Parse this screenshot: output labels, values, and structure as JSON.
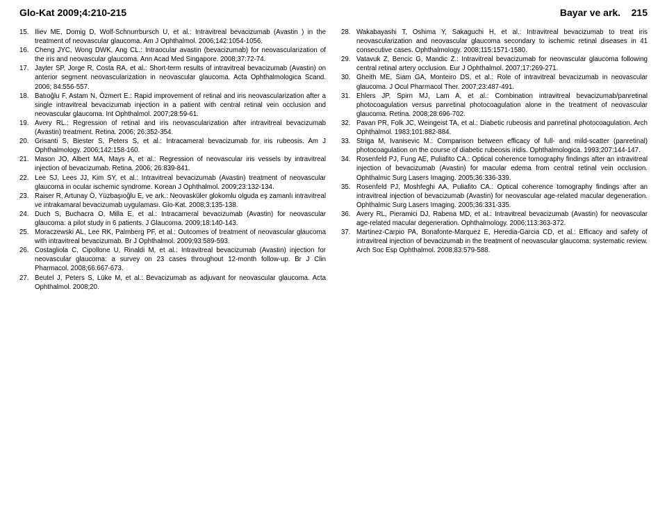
{
  "header": {
    "left": "Glo-Kat 2009;4:210-215",
    "right_author": "Bayar ve ark.",
    "right_page": "215"
  },
  "references_left": [
    {
      "n": "15.",
      "t": "Iliev ME, Domig D, Wolf-Schnurrbursch U, et al.: Intravitreal bevacizumab (Avastin ) in the treatment of neovascular glaucoma. Am J Ophthalmol. 2006;142:1054-1056."
    },
    {
      "n": "16.",
      "t": "Cheng JYC, Wong DWK, Ang CL.: Intraocular avastin (bevacizumab) for neovascularization of the iris and neovascular glaucoma. Ann Acad Med Singapore. 2008;37:72-74."
    },
    {
      "n": "17.",
      "t": "Jayter SP, Jorge R, Costa RA, et al.: Short-term results of intravitreal bevacizumab (Avastin) on anterior segment neovascularization in neovascular glaucoma. Acta Ophthalmologica Scand. 2006; 84:556-557."
    },
    {
      "n": "18.",
      "t": "Batıoğlu F, Astam N, Özmert E.: Rapid improvement of retinal and iris neovascularization after a single intravitreal bevacizumab injection in a patient with central retinal vein occlusion and neovascular glaucoma. Int Ophthalmol. 2007;28:59-61."
    },
    {
      "n": "19.",
      "t": "Avery RL.: Regression of retinal and iris neovascularization after intravitreal bevacizumab (Avastin) treatment. Retina. 2006; 26:352-354."
    },
    {
      "n": "20.",
      "t": "Grisanti S, Biester S, Peters S, et al.: Intracameral bevacizumab for iris rubeosis. Am J Ophthalmology. 2006;142:158-160."
    },
    {
      "n": "21.",
      "t": "Mason JO, Albert MA, Mays A, et al.: Regression of neovascular iris vessels by intravitreal injection of bevacizumab. Retina. 2006; 26:839-841."
    },
    {
      "n": "22.",
      "t": "Lee SJ, Lees JJ, Kim SY, et al.: Intravitreal bevacizumab (Avastin) treatment of neovascular glaucoma in ocular ischemic syndrome. Korean J Ophthalmol. 2009;23:132-134."
    },
    {
      "n": "23.",
      "t": "Raiser R, Artunay Ö, Yüzbaşıoğlu E, ve ark.: Neovasküler glokomlu olguda eş zamanlı intravitreal ve intrakamaral bevacizumab uygulaması. Glo-Kat. 2008;3:135-138."
    },
    {
      "n": "24.",
      "t": "Duch S, Buchacra O, Milla E, et al.: Intracameral bevacizumab (Avastin) for neovascular glaucoma: a pilot study in 6 patients. J Glaucoma. 2009;18:140-143."
    },
    {
      "n": "25.",
      "t": "Moraczewski AL, Lee RK, Palmberg PF, et al.: Outcomes of treatment of neovascular glaucoma with intravitreal bevacizumab. Br J Ophthalmol. 2009;93:589-593."
    },
    {
      "n": "26.",
      "t": "Costagliola C, Cipollone U, Rinaldi M, et al.: Intravitreal bevacizumab (Avastin) injection for neovascular glaucoma: a survey on 23 cases throughout 12-month follow-up. Br J Clin Pharmacol. 2008;66:667-673."
    },
    {
      "n": "27.",
      "t": "Beutel J, Peters S, Lüke M, et al.: Bevacizumab as adjuvant for neovascular glaucoma. Acta Ophthalmol. 2008;20."
    }
  ],
  "references_right": [
    {
      "n": "28.",
      "t": "Wakabayashi T, Oshima Y, Sakaguchi H, et al.: Intravitreal bevacizumab to treat iris neovascularization and neovascular glaucoma secondary to ischemic retinal diseases in 41 consecutive cases. Ophthalmology. 2008;115:1571-1580."
    },
    {
      "n": "29.",
      "t": "Vatavuk Z, Bencic G, Mandic Z.: Intravitreal bevacizumab for neovascular glaucoma following central retinal artery occlusion. Eur J Ophthalmol. 2007;17:269-271."
    },
    {
      "n": "30.",
      "t": "Gheith ME, Siam GA, Monteiro DS, et al.: Role of intravitreal bevacizumab in neovascular glaucoma. J Ocul Pharmacol Ther. 2007;23:487-491."
    },
    {
      "n": "31.",
      "t": "Ehlers JP, Spirn MJ, Lam A, et al.: Combination intravitreal bevacizumab/panretinal photocoagulation versus panretinal photocoagulation alone in the treatment of neovascular glaucoma. Retina. 2008;28:696-702."
    },
    {
      "n": "32.",
      "t": "Pavan PR, Folk JC, Weingeist TA, et al.: Diabetic rubeosis and panretinal photocoagulation. Arch Ophthalmol. 1983;101:882-884."
    },
    {
      "n": "33.",
      "t": "Striga M, Ivanisevic M.: Comparison between efficacy of full- and mild-scatter (panretinal) photocoagulation on the course of diabetic rubeosis iridis. Ophthalmologica. 1993;207:144-147."
    },
    {
      "n": "34.",
      "t": "Rosenfeld PJ, Fung AE, Puliafito CA.: Optical coherence tomography findings after an intravitreal injection of bevacizumab (Avastin) for macular edema from central retinal vein occlusion. Ophthalmic Surg Lasers Imaging. 2005;36:336-339."
    },
    {
      "n": "35.",
      "t": "Rosenfeld PJ, Moshfeghi AA, Puliafito CA.: Optical coherence tomography findings after an intravitreal injection of bevacizumab (Avastin) for neovascular age-related macular degeneration. Ophthalmic Surg Lasers Imaging. 2005;36:331-335."
    },
    {
      "n": "36.",
      "t": "Avery RL, Pieramici DJ, Rabena MD, et al.: Intravitreal bevacizumab (Avastin) for neovascular age-related macular degeneration. Ophthalmology. 2006;113:363-372."
    },
    {
      "n": "37.",
      "t": "Martinez-Carpio PA, Bonafonte-Marquez E, Heredia-Garcia CD, et al.: Efficacy and safety of intravitreal injection of bevacizumab in the treatment of neovascular glaucoma: systematic review. Arch Soc Esp Ophthalmol. 2008;83:579-588."
    }
  ]
}
